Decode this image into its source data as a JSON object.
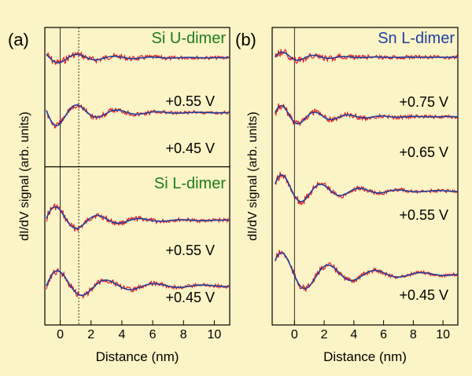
{
  "chart_data": [
    {
      "type": "line",
      "panel_label": "(a)",
      "xlabel": "Distance (nm)",
      "ylabel": "dI/dV signal (arb. units)",
      "xlim": [
        -1,
        11
      ],
      "xticks": [
        "0",
        "2",
        "4",
        "6",
        "8",
        "10"
      ],
      "xtick_values": [
        0,
        2,
        4,
        6,
        8,
        10
      ],
      "reference_lines_x": [
        0,
        1.2
      ],
      "groups": [
        {
          "title": "Si U-dimer",
          "title_color": "#1f7a1f",
          "curves": [
            {
              "label": "+0.55 V",
              "x0": -0.9,
              "A": 0.35,
              "k": 2.6,
              "phi": 2.6,
              "decay": 0.35,
              "offset_frac": 0.22
            },
            {
              "label": "+0.45 V",
              "x0": -0.9,
              "A": 0.9,
              "k": 2.4,
              "phi": 3.0,
              "decay": 0.4,
              "offset_frac": 0.62
            }
          ]
        },
        {
          "title": "Si L-dimer",
          "title_color": "#1f7a1f",
          "curves": [
            {
              "label": "+0.55 V",
              "x0": -0.9,
              "A": 0.9,
              "k": 2.3,
              "phi": 0.1,
              "decay": 0.38,
              "offset_frac": 0.33
            },
            {
              "label": "+0.45 V",
              "x0": -0.9,
              "A": 1.0,
              "k": 2.0,
              "phi": 0.0,
              "decay": 0.3,
              "offset_frac": 0.75
            }
          ]
        }
      ]
    },
    {
      "type": "line",
      "panel_label": "(b)",
      "xlabel": "Distance (nm)",
      "ylabel": "dI/dV signal (arb. units)",
      "xlim": [
        -1.5,
        11
      ],
      "xticks": [
        "0",
        "2",
        "4",
        "6",
        "8",
        "10"
      ],
      "xtick_values": [
        0,
        2,
        4,
        6,
        8,
        10
      ],
      "reference_lines_x": [
        0
      ],
      "groups": [
        {
          "title": "Sn L-dimer",
          "title_color": "#1f3fa0",
          "curves": [
            {
              "label": "+0.75 V",
              "x0": -1.3,
              "A": 0.35,
              "k": 3.0,
              "phi": 0.0,
              "decay": 0.5,
              "offset_frac": 0.1
            },
            {
              "label": "+0.65 V",
              "x0": -1.3,
              "A": 0.7,
              "k": 2.8,
              "phi": 0.3,
              "decay": 0.4,
              "offset_frac": 0.3
            },
            {
              "label": "+0.55 V",
              "x0": -1.3,
              "A": 1.0,
              "k": 2.4,
              "phi": 0.4,
              "decay": 0.33,
              "offset_frac": 0.55
            },
            {
              "label": "+0.45 V",
              "x0": -1.3,
              "A": 1.3,
              "k": 2.0,
              "phi": 0.6,
              "decay": 0.27,
              "offset_frac": 0.83
            }
          ]
        }
      ]
    }
  ],
  "colors": {
    "background": "#fbf4c6",
    "experiment": "#e0141e",
    "fit": "#1f3fa0",
    "si_title": "#1f7a1f",
    "sn_title": "#1f3fa0"
  }
}
